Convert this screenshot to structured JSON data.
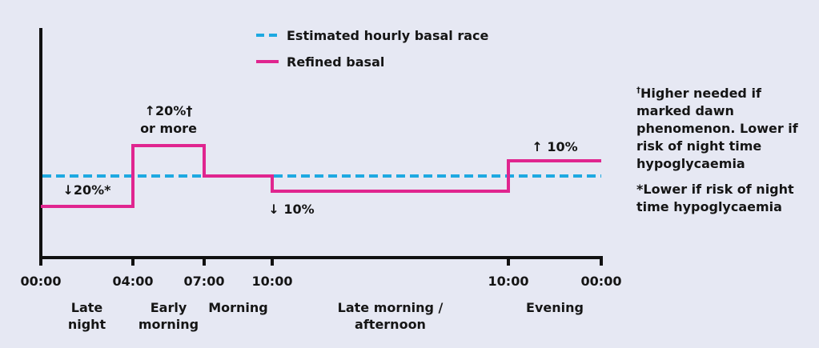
{
  "chart_data": {
    "type": "line",
    "x_ticks": [
      "00:00",
      "04:00",
      "07:00",
      "10:00",
      "10:00",
      "00:00"
    ],
    "periods": [
      "Late night",
      "Early morning",
      "Morning",
      "Late morning / afternoon",
      "Evening"
    ],
    "legend": {
      "position": "top",
      "estimated": "Estimated hourly basal race",
      "refined": "Refined basal"
    },
    "series": [
      {
        "name": "Estimated hourly basal race",
        "style": "dashed",
        "color": "#1ea9e1",
        "values": [
          0,
          0,
          0,
          0,
          0
        ]
      },
      {
        "name": "Refined basal",
        "style": "step",
        "color": "#e0258f",
        "values": [
          -20,
          20,
          0,
          -10,
          10
        ]
      }
    ],
    "annotations": [
      {
        "text": "↓20%*",
        "period": 0
      },
      {
        "text": "↑20%†",
        "text2": "or more",
        "period": 1
      },
      {
        "text": "↓ 10%",
        "period": 3
      },
      {
        "text": "↑ 10%",
        "period": 4
      }
    ],
    "notes": [
      "Higher needed if marked dawn phenomenon. Lower if risk of night time hypoglycaemia",
      "*Lower if risk of night time hypoglycaemia"
    ],
    "note_mark": "†",
    "yunit": "%",
    "ylim": [
      -30,
      30
    ],
    "grid": false
  }
}
